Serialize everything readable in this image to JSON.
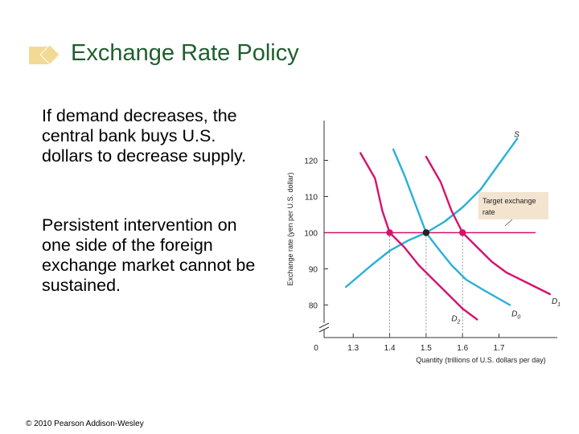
{
  "slide": {
    "title": "Exchange Rate Policy",
    "paragraph1": "If demand decreases, the central bank buys U.S. dollars to decrease supply.",
    "paragraph2": "Persistent intervention on one side of the foreign exchange market cannot be sustained.",
    "copyright": "© 2010 Pearson Addison-Wesley"
  },
  "colors": {
    "title": "#1f5f2e",
    "accent": "#f2d995",
    "demand": "#d6136b",
    "supply": "#2ab0d6",
    "target_line": "#d6136b"
  },
  "chart_data": {
    "type": "line",
    "xlabel": "Quantity (trillions of U.S. dollars per day)",
    "ylabel": "Exchange rate (yen per U.S. dollar)",
    "x_ticks": [
      "0",
      "1.3",
      "1.4",
      "1.5",
      "1.6",
      "1.7"
    ],
    "x_tick_values": [
      1.22,
      1.3,
      1.4,
      1.5,
      1.6,
      1.7
    ],
    "highlighted_x_ticks": [
      "1.4",
      "1.6"
    ],
    "y_ticks": [
      80,
      90,
      100,
      110,
      120
    ],
    "xlim": [
      1.22,
      1.86
    ],
    "ylim": [
      71,
      131
    ],
    "target_rate": 100,
    "target_label": "Target exchange rate",
    "series": [
      {
        "name": "S",
        "color": "#2ab0d6",
        "x": [
          1.28,
          1.35,
          1.4,
          1.45,
          1.5,
          1.55,
          1.6,
          1.65,
          1.7,
          1.75
        ],
        "y": [
          85,
          91,
          95,
          97.8,
          100,
          103,
          107,
          112,
          119,
          126
        ]
      },
      {
        "name": "D0",
        "color": "#2ab0d6",
        "x": [
          1.41,
          1.44,
          1.47,
          1.5,
          1.53,
          1.57,
          1.61,
          1.66,
          1.73
        ],
        "y": [
          123,
          116,
          108,
          100,
          96,
          91,
          87,
          84,
          80
        ]
      },
      {
        "name": "D1",
        "color": "#d6136b",
        "x": [
          1.5,
          1.54,
          1.57,
          1.6,
          1.64,
          1.68,
          1.72,
          1.78,
          1.84
        ],
        "y": [
          121,
          114,
          106,
          100,
          96,
          92,
          89,
          86,
          83
        ]
      },
      {
        "name": "D2",
        "color": "#d6136b",
        "x": [
          1.32,
          1.36,
          1.38,
          1.4,
          1.44,
          1.48,
          1.52,
          1.56,
          1.6,
          1.64
        ],
        "y": [
          122,
          115,
          106,
          100,
          96,
          91,
          87,
          83,
          79,
          76
        ]
      }
    ],
    "points": [
      {
        "x": 1.4,
        "y": 100,
        "color": "#d6136b"
      },
      {
        "x": 1.5,
        "y": 100,
        "color": "#222222"
      },
      {
        "x": 1.6,
        "y": 100,
        "color": "#d6136b"
      }
    ]
  }
}
